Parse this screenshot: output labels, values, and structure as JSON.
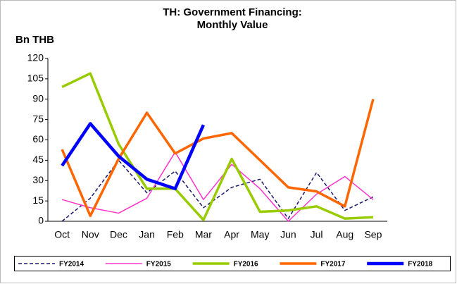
{
  "chart_data": {
    "type": "line",
    "title": [
      "TH: Government Financing:",
      "Monthly Value"
    ],
    "y_label": "Bn THB",
    "categories": [
      "Oct",
      "Nov",
      "Dec",
      "Jan",
      "Feb",
      "Mar",
      "Apr",
      "May",
      "Jun",
      "Jul",
      "Aug",
      "Sep"
    ],
    "ylim": [
      0,
      120
    ],
    "yticks": [
      0,
      15,
      30,
      45,
      60,
      75,
      90,
      105,
      120
    ],
    "legend": "bottom",
    "series": [
      {
        "name": "FY2014",
        "color": "#1a1a6e",
        "dash": true,
        "width": 1.5,
        "values": [
          0,
          17,
          45,
          21,
          37,
          10,
          25,
          31,
          2,
          36,
          8,
          18
        ]
      },
      {
        "name": "FY2015",
        "color": "#ff33cc",
        "width": 1.5,
        "values": [
          16,
          10,
          6,
          17,
          51,
          16,
          42,
          24,
          0,
          20,
          33,
          16
        ]
      },
      {
        "name": "FY2016",
        "color": "#99cc00",
        "width": 3.5,
        "values": [
          99,
          109,
          57,
          24,
          24,
          1,
          46,
          7,
          8,
          11,
          2,
          3
        ]
      },
      {
        "name": "FY2017",
        "color": "#ff6600",
        "width": 3.5,
        "values": [
          53,
          4,
          46,
          80,
          50,
          61,
          65,
          45,
          25,
          22,
          11,
          90
        ]
      },
      {
        "name": "FY2018",
        "color": "#0000ff",
        "width": 4.5,
        "values": [
          41,
          72,
          48,
          31,
          24,
          71,
          null,
          null,
          null,
          null,
          null,
          null
        ]
      }
    ]
  }
}
